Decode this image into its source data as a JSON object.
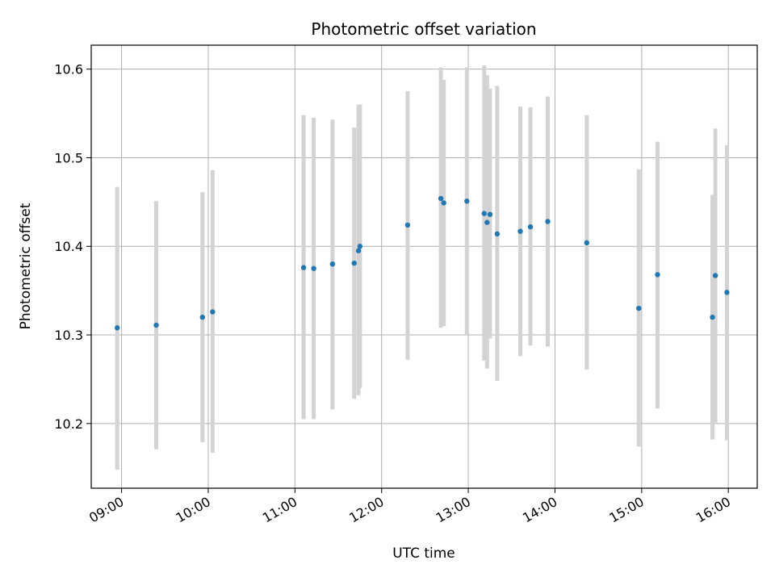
{
  "chart_data": {
    "type": "scatter",
    "title": "Photometric offset variation",
    "xlabel": "UTC time",
    "ylabel": "Photometric offset",
    "x_axis": "time",
    "xlim": [
      "08:39",
      "16:20"
    ],
    "ylim": [
      10.127,
      10.627
    ],
    "x_ticks": [
      "09:00",
      "10:00",
      "11:00",
      "12:00",
      "13:00",
      "14:00",
      "15:00",
      "16:00"
    ],
    "y_ticks": [
      10.2,
      10.3,
      10.4,
      10.5,
      10.6
    ],
    "y_tick_labels": [
      "10.2",
      "10.3",
      "10.4",
      "10.5",
      "10.6"
    ],
    "grid": true,
    "colors": {
      "marker": "#1f77b4",
      "error_bar": "#d3d3d3",
      "grid": "#b0b0b0"
    },
    "series": [
      {
        "marker": "dot",
        "points": [
          {
            "x": "08:57",
            "y": 10.308,
            "low": 10.148,
            "high": 10.467
          },
          {
            "x": "09:24",
            "y": 10.311,
            "low": 10.171,
            "high": 10.451
          },
          {
            "x": "09:56",
            "y": 10.32,
            "low": 10.179,
            "high": 10.461
          },
          {
            "x": "10:03",
            "y": 10.326,
            "low": 10.167,
            "high": 10.486
          },
          {
            "x": "11:06",
            "y": 10.376,
            "low": 10.205,
            "high": 10.548
          },
          {
            "x": "11:13",
            "y": 10.375,
            "low": 10.205,
            "high": 10.545
          },
          {
            "x": "11:26",
            "y": 10.38,
            "low": 10.216,
            "high": 10.543
          },
          {
            "x": "11:41",
            "y": 10.381,
            "low": 10.228,
            "high": 10.534
          },
          {
            "x": "11:44",
            "y": 10.395,
            "low": 10.232,
            "high": 10.56
          },
          {
            "x": "11:45",
            "y": 10.4,
            "low": 10.24,
            "high": 10.56
          },
          {
            "x": "12:18",
            "y": 10.424,
            "low": 10.272,
            "high": 10.575
          },
          {
            "x": "12:41",
            "y": 10.454,
            "low": 10.308,
            "high": 10.602
          },
          {
            "x": "12:43",
            "y": 10.449,
            "low": 10.31,
            "high": 10.588
          },
          {
            "x": "12:59",
            "y": 10.451,
            "low": 10.3,
            "high": 10.602
          },
          {
            "x": "13:11",
            "y": 10.437,
            "low": 10.271,
            "high": 10.604
          },
          {
            "x": "13:13",
            "y": 10.427,
            "low": 10.262,
            "high": 10.593
          },
          {
            "x": "13:15",
            "y": 10.436,
            "low": 10.296,
            "high": 10.578
          },
          {
            "x": "13:20",
            "y": 10.414,
            "low": 10.248,
            "high": 10.581
          },
          {
            "x": "13:36",
            "y": 10.417,
            "low": 10.276,
            "high": 10.558
          },
          {
            "x": "13:43",
            "y": 10.422,
            "low": 10.288,
            "high": 10.557
          },
          {
            "x": "13:55",
            "y": 10.428,
            "low": 10.287,
            "high": 10.569
          },
          {
            "x": "14:22",
            "y": 10.404,
            "low": 10.261,
            "high": 10.548
          },
          {
            "x": "14:58",
            "y": 10.33,
            "low": 10.174,
            "high": 10.487
          },
          {
            "x": "15:11",
            "y": 10.368,
            "low": 10.217,
            "high": 10.518
          },
          {
            "x": "15:49",
            "y": 10.32,
            "low": 10.182,
            "high": 10.458
          },
          {
            "x": "15:51",
            "y": 10.367,
            "low": 10.201,
            "high": 10.533
          },
          {
            "x": "15:59",
            "y": 10.348,
            "low": 10.181,
            "high": 10.514
          }
        ]
      }
    ]
  }
}
